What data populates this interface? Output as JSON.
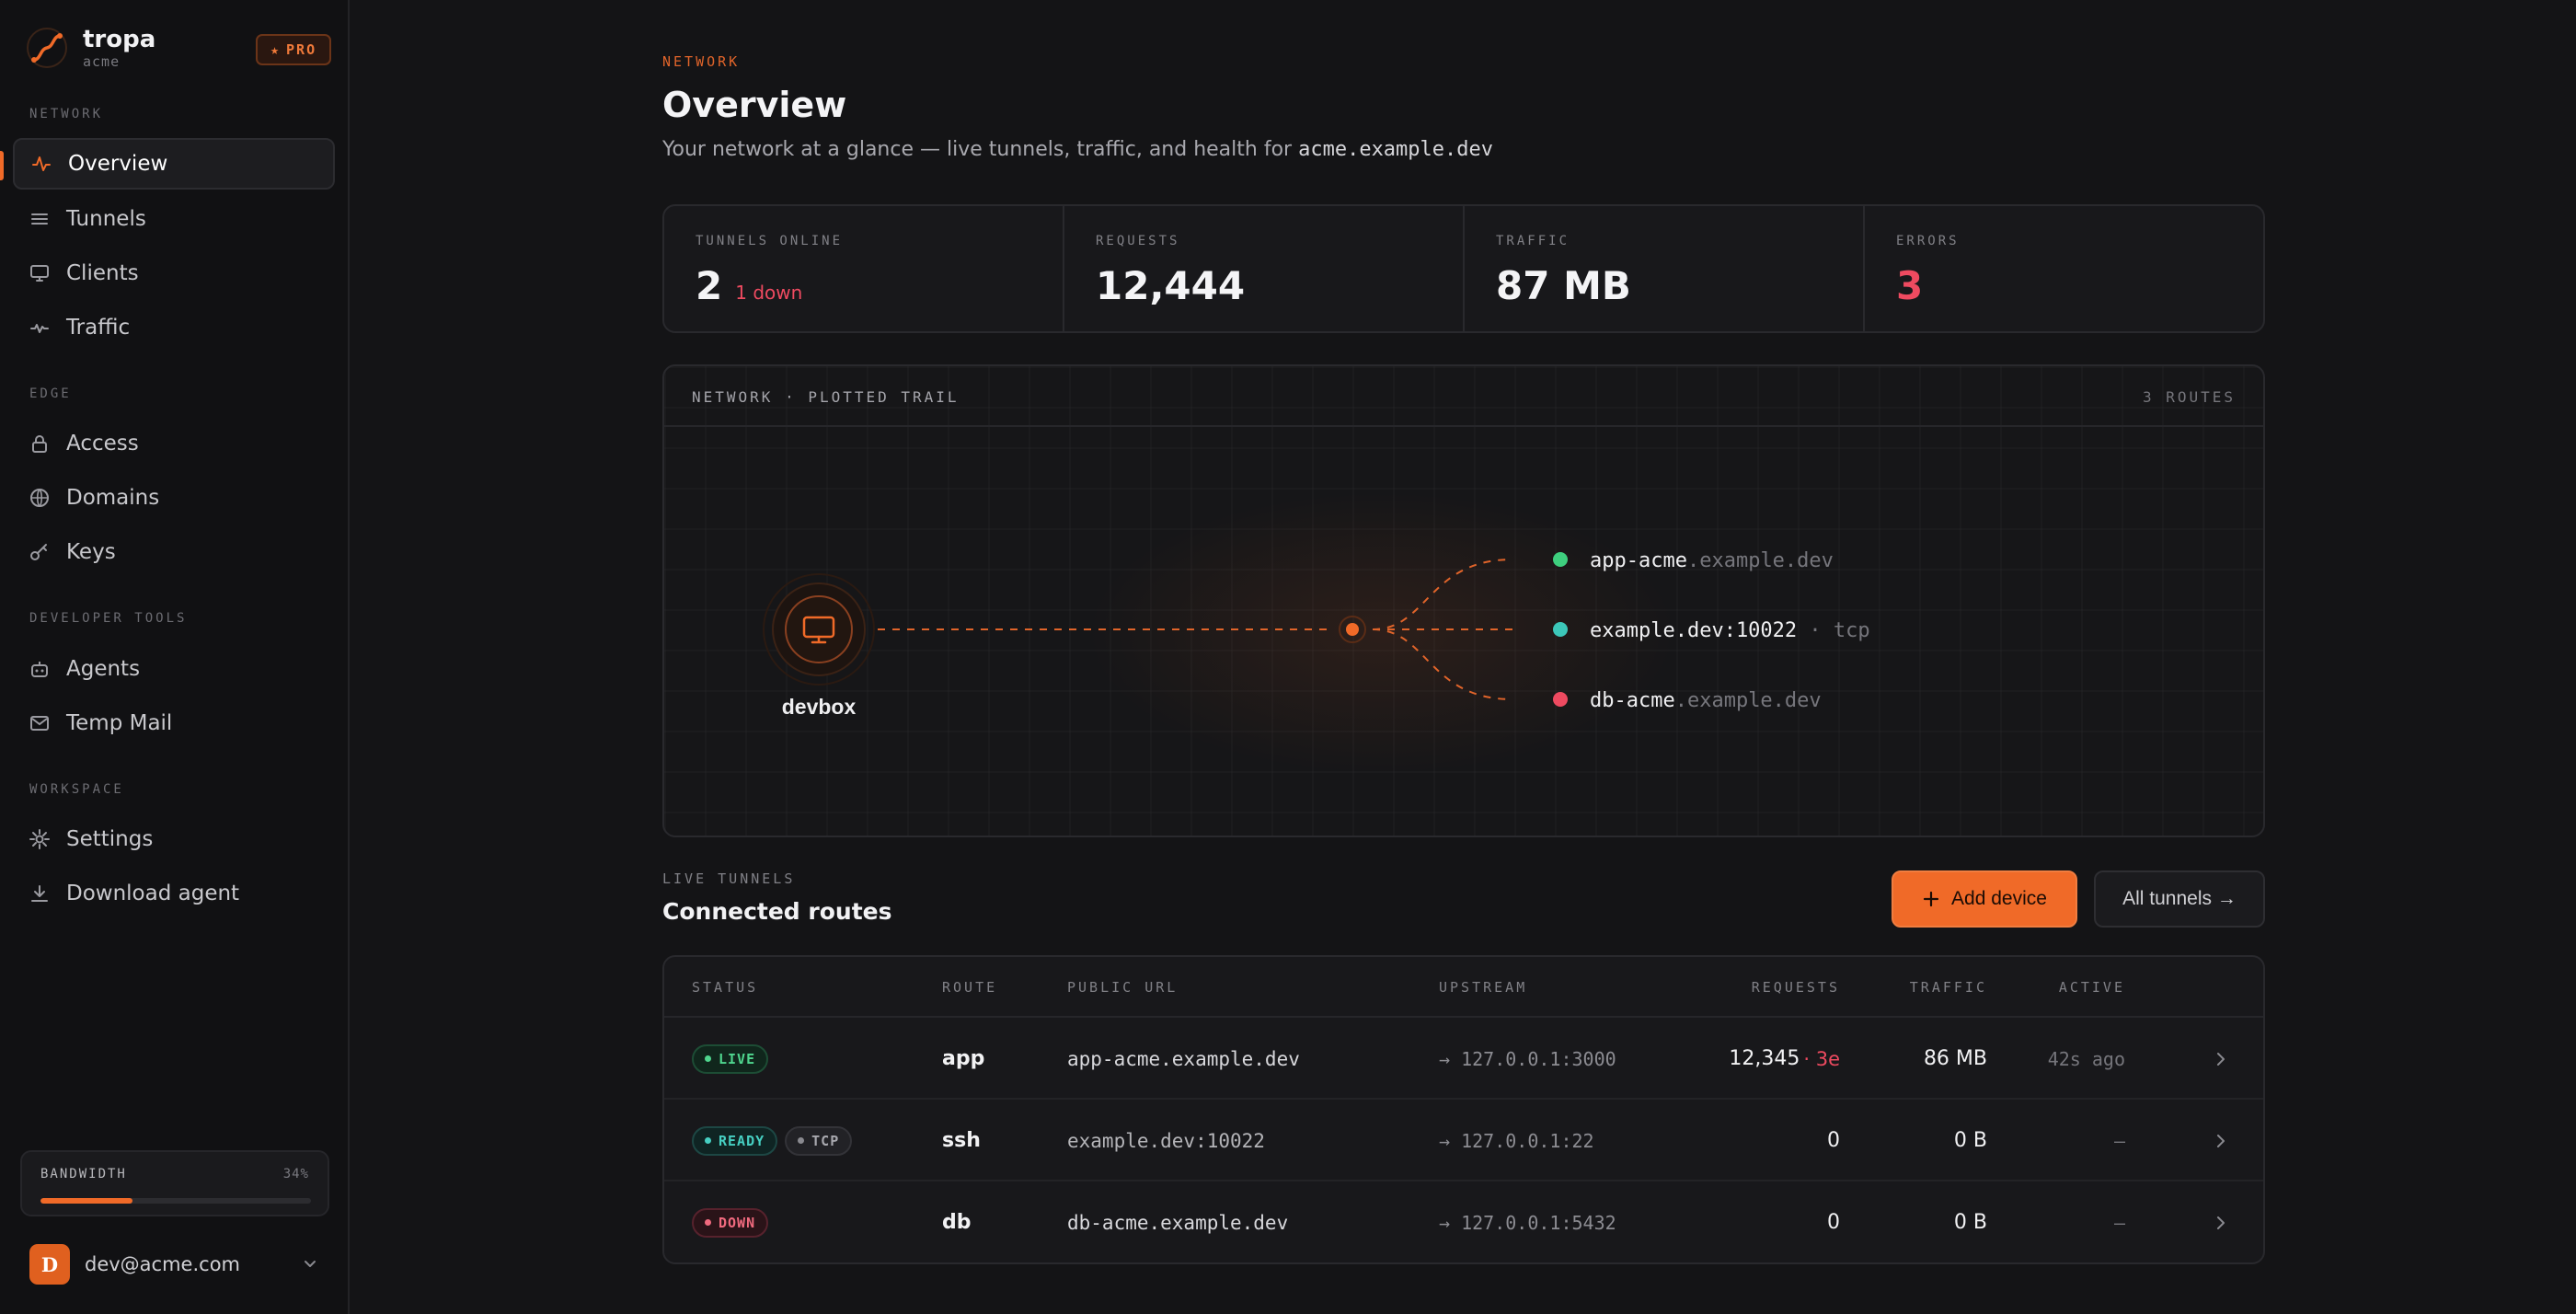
{
  "brand": {
    "name": "tropa",
    "org": "acme",
    "badge": "PRO"
  },
  "sidebar": {
    "sections": [
      {
        "title": "NETWORK",
        "items": [
          {
            "label": "Overview",
            "icon": "pulse-icon",
            "active": true
          },
          {
            "label": "Tunnels",
            "icon": "list-icon"
          },
          {
            "label": "Clients",
            "icon": "monitor-icon"
          },
          {
            "label": "Traffic",
            "icon": "activity-icon"
          }
        ]
      },
      {
        "title": "EDGE",
        "items": [
          {
            "label": "Access",
            "icon": "lock-icon"
          },
          {
            "label": "Domains",
            "icon": "globe-icon"
          },
          {
            "label": "Keys",
            "icon": "key-icon"
          }
        ]
      },
      {
        "title": "DEVELOPER TOOLS",
        "items": [
          {
            "label": "Agents",
            "icon": "robot-icon"
          },
          {
            "label": "Temp Mail",
            "icon": "mail-icon"
          }
        ]
      },
      {
        "title": "WORKSPACE",
        "items": [
          {
            "label": "Settings",
            "icon": "gear-icon"
          },
          {
            "label": "Download agent",
            "icon": "download-icon"
          }
        ]
      }
    ],
    "bandwidth": {
      "label": "BANDWIDTH",
      "value": "34%",
      "fraction": 0.34
    },
    "user": {
      "initial": "D",
      "email": "dev@acme.com"
    }
  },
  "header": {
    "eyebrow": "NETWORK",
    "title": "Overview",
    "subtitle": "Your network at a glance — live tunnels, traffic, and health for",
    "domain": "acme.example.dev"
  },
  "stats": [
    {
      "label": "TUNNELS ONLINE",
      "value": "2",
      "note": "1 down"
    },
    {
      "label": "REQUESTS",
      "value": "12,444"
    },
    {
      "label": "TRAFFIC",
      "value": "87 MB"
    },
    {
      "label": "ERRORS",
      "value": "3"
    }
  ],
  "network": {
    "title": "NETWORK · PLOTTED TRAIL",
    "count": "3 ROUTES",
    "device": "devbox",
    "routes": [
      {
        "host": "app-acme",
        "suffix": ".example.dev",
        "status_color": "#3ecf7e"
      },
      {
        "host": "example.dev:10022",
        "suffix": " · tcp",
        "status_color": "#3cc7b9"
      },
      {
        "host": "db-acme",
        "suffix": ".example.dev",
        "status_color": "#ee4a60"
      }
    ]
  },
  "live": {
    "eyebrow": "LIVE TUNNELS",
    "title": "Connected routes",
    "add_label": "Add device",
    "all_label": "All tunnels →"
  },
  "table": {
    "headers": [
      "STATUS",
      "ROUTE",
      "PUBLIC URL",
      "UPSTREAM",
      "REQUESTS",
      "TRAFFIC",
      "ACTIVE"
    ],
    "rows": [
      {
        "status": "LIVE",
        "extra_badge": "",
        "route": "app",
        "url": "app-acme.example.dev",
        "upstream": "→ 127.0.0.1:3000",
        "requests": "12,345",
        "errors": "· 3e",
        "traffic": "86 MB",
        "active": "42s ago"
      },
      {
        "status": "READY",
        "extra_badge": "TCP",
        "route": "ssh",
        "url": "example.dev:10022",
        "upstream": "→ 127.0.0.1:22",
        "requests": "0",
        "errors": "",
        "traffic": "0 B",
        "active": "—"
      },
      {
        "status": "DOWN",
        "extra_badge": "",
        "route": "db",
        "url": "db-acme.example.dev",
        "upstream": "→ 127.0.0.1:5432",
        "requests": "0",
        "errors": "",
        "traffic": "0 B",
        "active": "—"
      }
    ]
  },
  "colors": {
    "accent": "#f06a28",
    "live": "#4fd68e",
    "ready": "#46cfc2",
    "down": "#ee4a60"
  }
}
